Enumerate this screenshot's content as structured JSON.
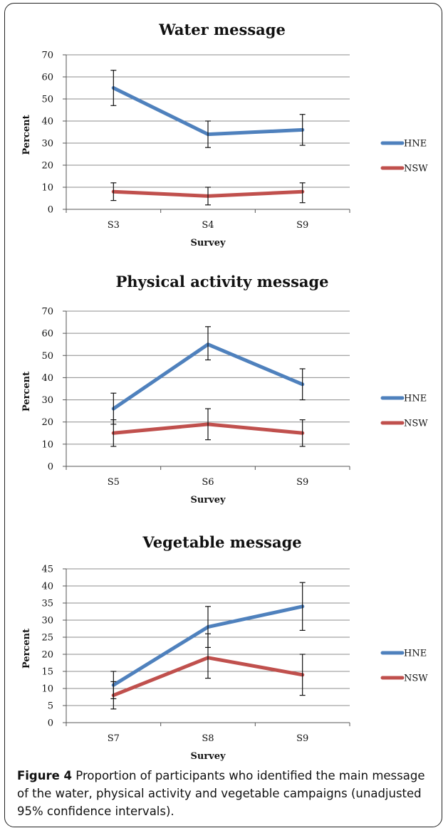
{
  "caption": {
    "figure_label": "Figure 4",
    "text": "Proportion of participants who identified the main message of the water, physical activity and vegetable campaigns (unadjusted 95% confidence intervals)."
  },
  "colors": {
    "HNE": "#4f81bd",
    "NSW": "#c0504d"
  },
  "chart_data": [
    {
      "type": "line",
      "title": "Water message",
      "xlabel": "Survey",
      "ylabel": "Percent",
      "ylim": [
        0,
        70
      ],
      "yticks": [
        0,
        10,
        20,
        30,
        40,
        50,
        60,
        70
      ],
      "grid": true,
      "legend": "right",
      "categories": [
        "S3",
        "S4",
        "S9"
      ],
      "series": [
        {
          "name": "HNE",
          "values": [
            55,
            34,
            36
          ],
          "ci_low": [
            47,
            28,
            29
          ],
          "ci_high": [
            63,
            40,
            43
          ]
        },
        {
          "name": "NSW",
          "values": [
            8,
            6,
            8
          ],
          "ci_low": [
            4,
            2,
            3
          ],
          "ci_high": [
            12,
            10,
            12
          ]
        }
      ]
    },
    {
      "type": "line",
      "title": "Physical activity message",
      "xlabel": "Survey",
      "ylabel": "Percent",
      "ylim": [
        0,
        70
      ],
      "yticks": [
        0,
        10,
        20,
        30,
        40,
        50,
        60,
        70
      ],
      "grid": true,
      "legend": "right",
      "categories": [
        "S5",
        "S6",
        "S9"
      ],
      "series": [
        {
          "name": "HNE",
          "values": [
            26,
            55,
            37
          ],
          "ci_low": [
            19,
            48,
            30
          ],
          "ci_high": [
            33,
            63,
            44
          ]
        },
        {
          "name": "NSW",
          "values": [
            15,
            19,
            15
          ],
          "ci_low": [
            9,
            12,
            9
          ],
          "ci_high": [
            21,
            26,
            21
          ]
        }
      ]
    },
    {
      "type": "line",
      "title": "Vegetable message",
      "xlabel": "Survey",
      "ylabel": "Percent",
      "ylim": [
        0,
        45
      ],
      "yticks": [
        0,
        5,
        10,
        15,
        20,
        25,
        30,
        35,
        40,
        45
      ],
      "grid": true,
      "legend": "right",
      "categories": [
        "S7",
        "S8",
        "S9"
      ],
      "series": [
        {
          "name": "HNE",
          "values": [
            11,
            28,
            34
          ],
          "ci_low": [
            7,
            22,
            27
          ],
          "ci_high": [
            15,
            34,
            41
          ]
        },
        {
          "name": "NSW",
          "values": [
            8,
            19,
            14
          ],
          "ci_low": [
            4,
            13,
            8
          ],
          "ci_high": [
            12,
            26,
            20
          ]
        }
      ]
    }
  ]
}
